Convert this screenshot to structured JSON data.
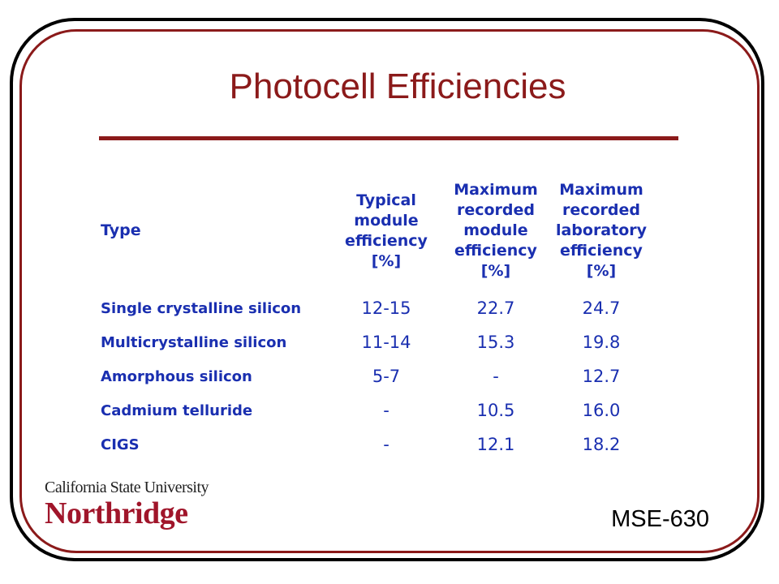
{
  "slide": {
    "title": "Photocell Efficiencies",
    "course_code": "MSE-630"
  },
  "logo": {
    "line1": "California State University",
    "line2": "Northridge"
  },
  "colors": {
    "title": "#8b1a1a",
    "table_text": "#1a2fb0",
    "frame_outer": "#000000",
    "frame_inner": "#8b1a1a"
  },
  "table": {
    "headers": {
      "type": "Type",
      "typical": [
        "Typical",
        "module",
        "efficiency",
        "[%]"
      ],
      "max_module": [
        "Maximum",
        "recorded",
        "module",
        "efficiency",
        "[%]"
      ],
      "max_lab": [
        "Maximum",
        "recorded",
        "laboratory",
        "efficiency",
        "[%]"
      ]
    },
    "rows": [
      {
        "type": "Single crystalline silicon",
        "typical": "12-15",
        "max_module": "22.7",
        "max_lab": "24.7"
      },
      {
        "type": "Multicrystalline silicon",
        "typical": "11-14",
        "max_module": "15.3",
        "max_lab": "19.8"
      },
      {
        "type": "Amorphous silicon",
        "typical": "5-7",
        "max_module": "-",
        "max_lab": "12.7"
      },
      {
        "type": "Cadmium telluride",
        "typical": "-",
        "max_module": "10.5",
        "max_lab": "16.0"
      },
      {
        "type": "CIGS",
        "typical": "-",
        "max_module": "12.1",
        "max_lab": "18.2"
      }
    ]
  }
}
